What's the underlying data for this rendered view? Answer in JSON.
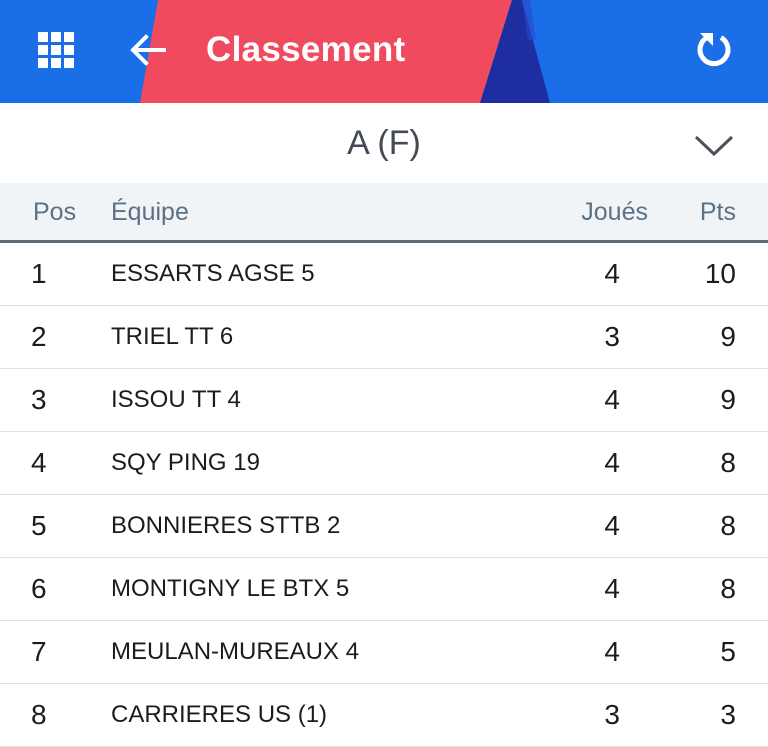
{
  "colors": {
    "appbar_bg": "#1a6ee8",
    "accent_red": "#f04a5e",
    "accent_navy": "#1e2ea0",
    "header_bg": "#f0f4f7",
    "header_text": "#5c7185"
  },
  "appbar": {
    "title": "Classement",
    "menu_icon": "grid-icon",
    "back_icon": "arrow-left-icon",
    "refresh_icon": "refresh-icon"
  },
  "selector": {
    "value": "A (F)",
    "icon": "chevron-down-icon"
  },
  "table": {
    "headers": {
      "pos": "Pos",
      "team": "Équipe",
      "played": "Joués",
      "pts": "Pts"
    },
    "rows": [
      {
        "pos": "1",
        "team": "ESSARTS AGSE 5",
        "played": "4",
        "pts": "10"
      },
      {
        "pos": "2",
        "team": "TRIEL TT 6",
        "played": "3",
        "pts": "9"
      },
      {
        "pos": "3",
        "team": "ISSOU TT 4",
        "played": "4",
        "pts": "9"
      },
      {
        "pos": "4",
        "team": "SQY PING 19",
        "played": "4",
        "pts": "8"
      },
      {
        "pos": "5",
        "team": "BONNIERES STTB 2",
        "played": "4",
        "pts": "8"
      },
      {
        "pos": "6",
        "team": "MONTIGNY LE BTX 5",
        "played": "4",
        "pts": "8"
      },
      {
        "pos": "7",
        "team": "MEULAN-MUREAUX 4",
        "played": "4",
        "pts": "5"
      },
      {
        "pos": "8",
        "team": "CARRIERES US (1)",
        "played": "3",
        "pts": "3"
      }
    ]
  }
}
